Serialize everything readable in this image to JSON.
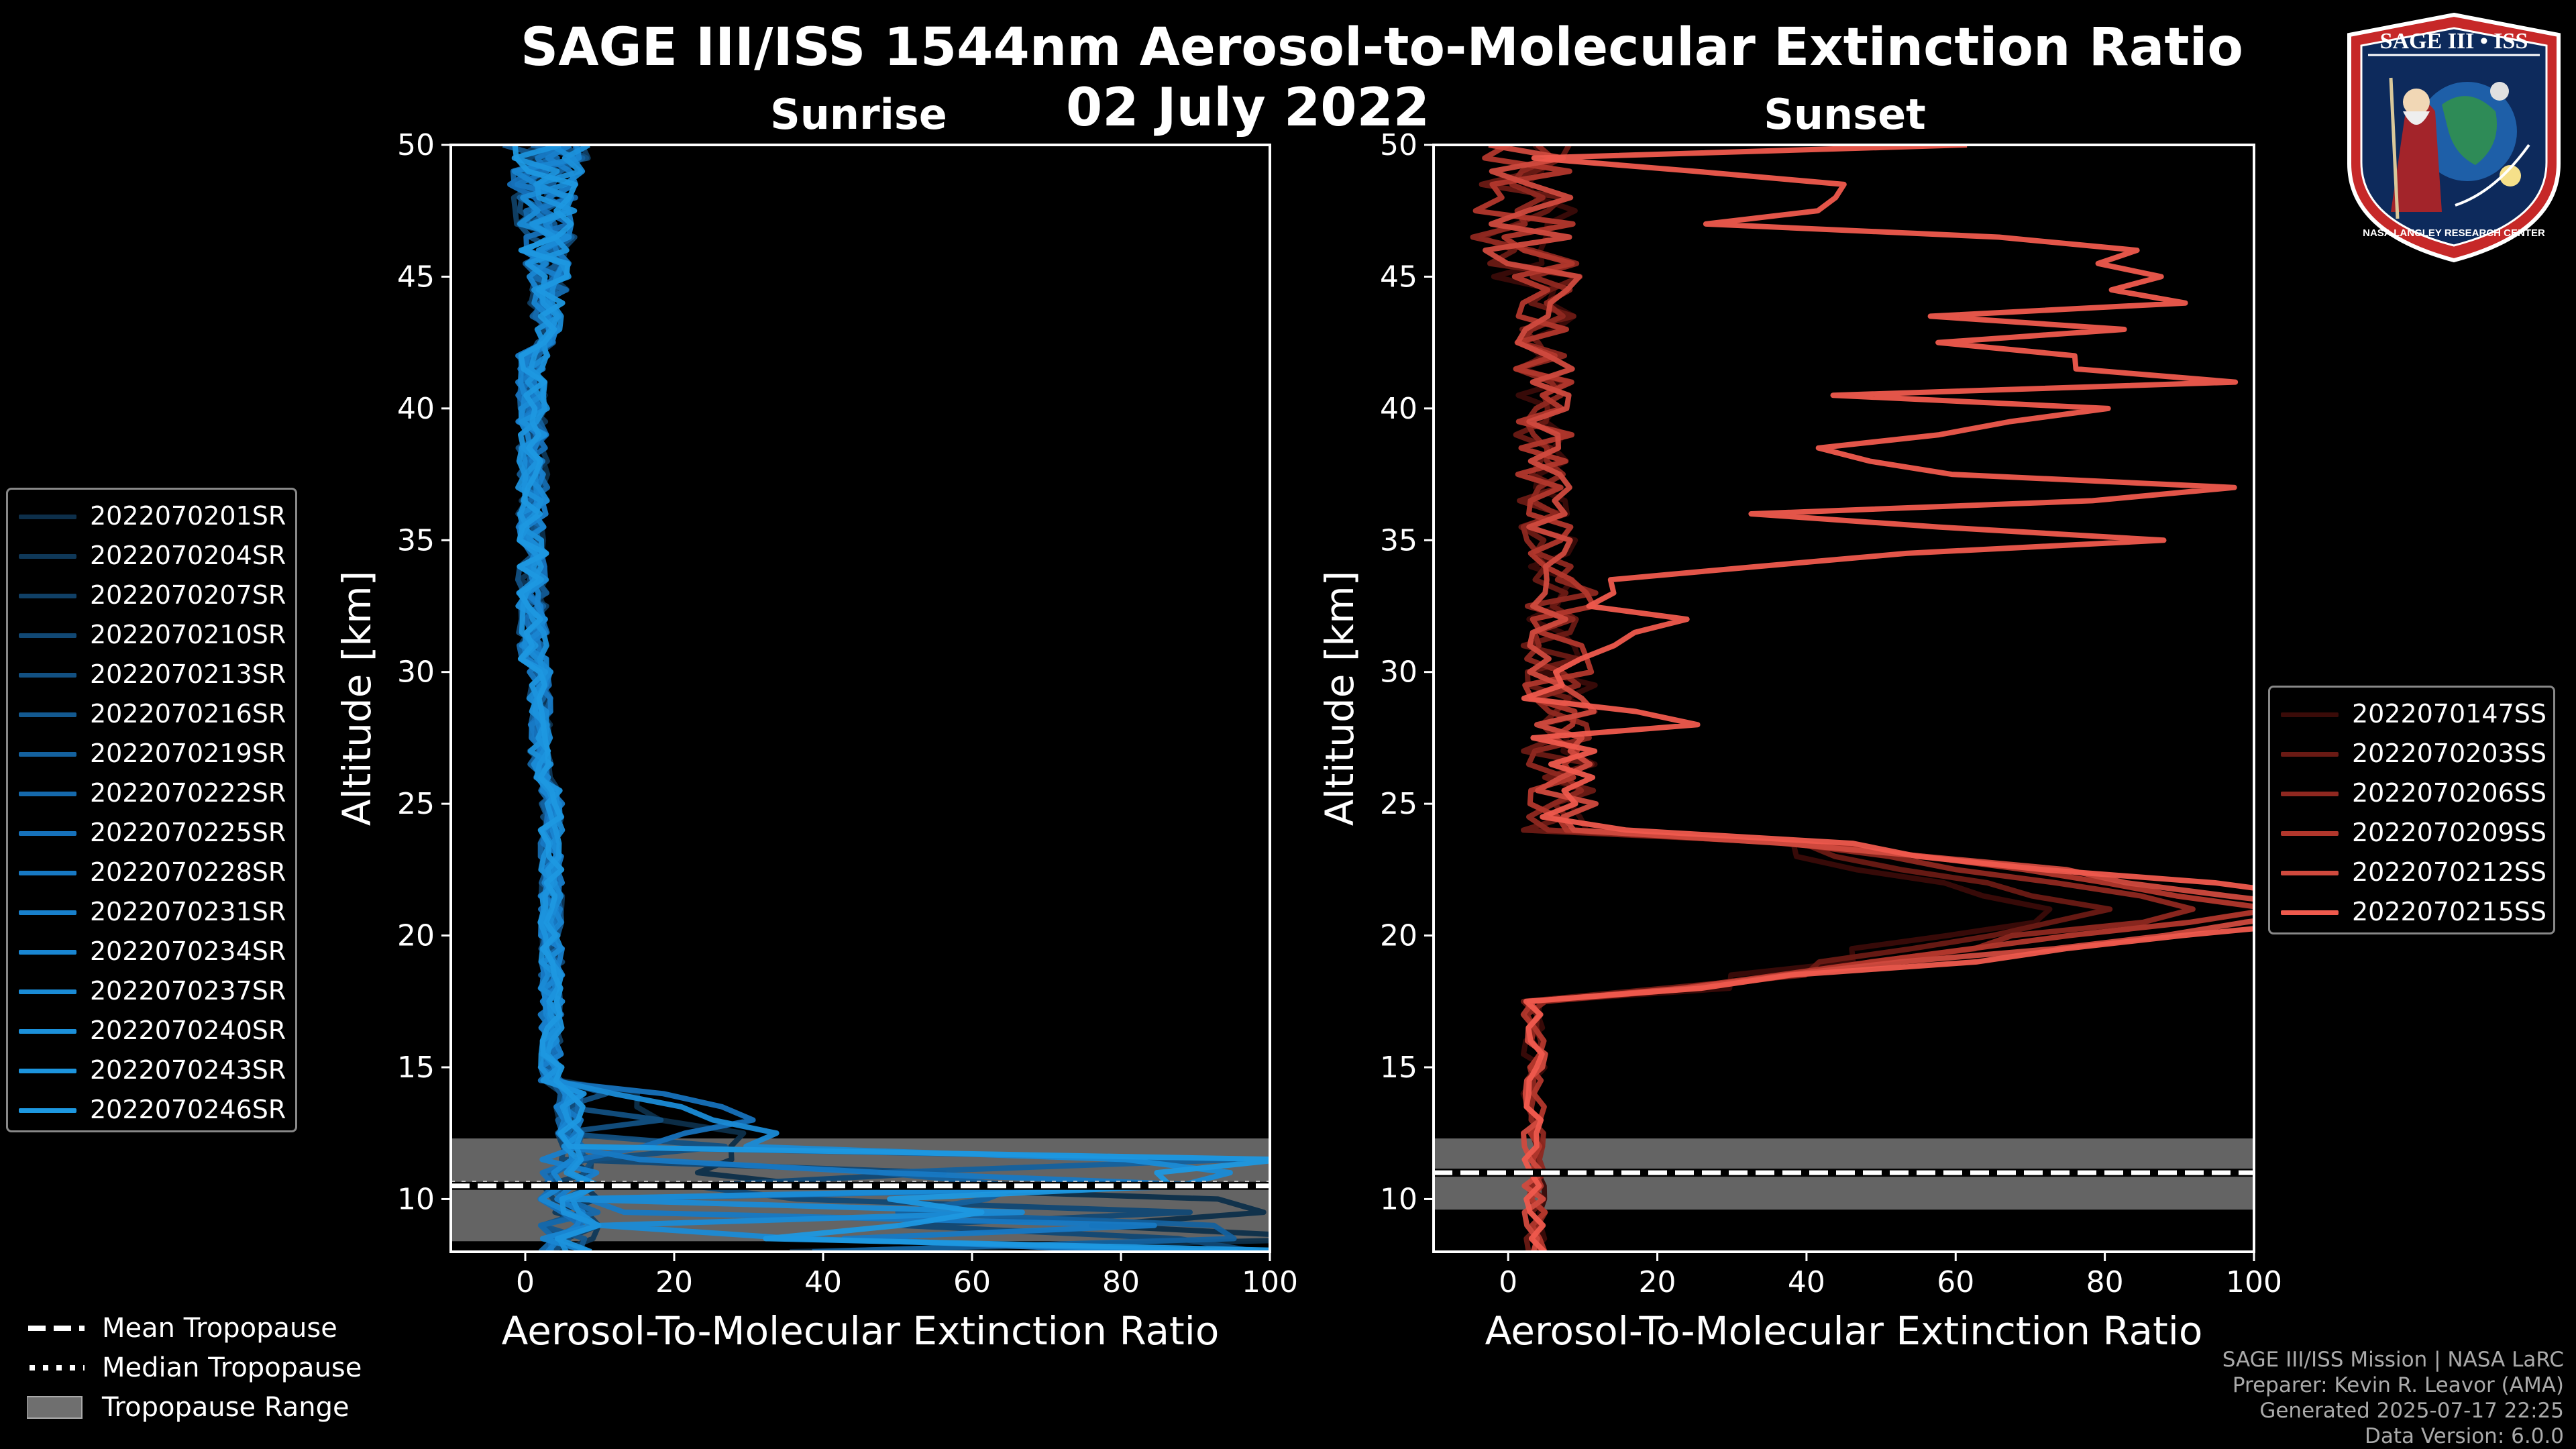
{
  "title_line1": "SAGE III/ISS 1544nm Aerosol-to-Molecular Extinction Ratio",
  "title_line2": "02 July 2022",
  "logo": {
    "text": "SAGE III • ISS",
    "ring_text": "NASA LANGLEY RESEARCH CENTER"
  },
  "bottom_legend": {
    "mean": "Mean Tropopause",
    "median": "Median Tropopause",
    "range": "Tropopause Range"
  },
  "credits": [
    "SAGE III/ISS Mission | NASA LaRC",
    "Preparer: Kevin R. Leavor (AMA)",
    "Generated 2025-07-17 22:25",
    "Data Version: 6.0.0"
  ],
  "colors": {
    "sunrise": "#1a8fd6",
    "sunset": "#e8574a",
    "tropopause_fill": "#6f6f6f"
  },
  "chart_data": [
    {
      "type": "line",
      "title": "Sunrise",
      "xlabel": "Aerosol-To-Molecular Extinction Ratio",
      "ylabel": "Altitude [km]",
      "xlim": [
        -10,
        100
      ],
      "ylim": [
        8,
        50
      ],
      "xticks": [
        0,
        20,
        40,
        60,
        80,
        100
      ],
      "yticks": [
        10,
        15,
        20,
        25,
        30,
        35,
        40,
        45,
        50
      ],
      "tropopause": {
        "mean": 10.5,
        "median": 10.6,
        "range": [
          8.4,
          12.3
        ]
      },
      "series": [
        {
          "name": "2022070201SR",
          "color": "#0d2f4a"
        },
        {
          "name": "2022070204SR",
          "color": "#0f3858"
        },
        {
          "name": "2022070207SR",
          "color": "#104066"
        },
        {
          "name": "2022070210SR",
          "color": "#114874"
        },
        {
          "name": "2022070213SR",
          "color": "#125082"
        },
        {
          "name": "2022070216SR",
          "color": "#135990"
        },
        {
          "name": "2022070219SR",
          "color": "#14619e"
        },
        {
          "name": "2022070222SR",
          "color": "#1569ac"
        },
        {
          "name": "2022070225SR",
          "color": "#1671ba"
        },
        {
          "name": "2022070228SR",
          "color": "#1779c4"
        },
        {
          "name": "2022070231SR",
          "color": "#1880cc"
        },
        {
          "name": "2022070234SR",
          "color": "#1986d2"
        },
        {
          "name": "2022070237SR",
          "color": "#1a8bd6"
        },
        {
          "name": "2022070240SR",
          "color": "#1b90da"
        },
        {
          "name": "2022070243SR",
          "color": "#1c94dd"
        },
        {
          "name": "2022070246SR",
          "color": "#1d98e0"
        }
      ]
    },
    {
      "type": "line",
      "title": "Sunset",
      "xlabel": "Aerosol-To-Molecular Extinction Ratio",
      "ylabel": "Altitude [km]",
      "xlim": [
        -10,
        100
      ],
      "ylim": [
        8,
        50
      ],
      "xticks": [
        0,
        20,
        40,
        60,
        80,
        100
      ],
      "yticks": [
        10,
        15,
        20,
        25,
        30,
        35,
        40,
        45,
        50
      ],
      "tropopause": {
        "mean": 11.0,
        "median": 11.0,
        "range": [
          9.6,
          12.3
        ]
      },
      "series": [
        {
          "name": "2022070147SS",
          "color": "#3a0b08"
        },
        {
          "name": "2022070203SS",
          "color": "#6a1a14"
        },
        {
          "name": "2022070206SS",
          "color": "#8f2820"
        },
        {
          "name": "2022070209SS",
          "color": "#b2372c"
        },
        {
          "name": "2022070212SS",
          "color": "#d04a3e"
        },
        {
          "name": "2022070215SS",
          "color": "#ef5a4d"
        }
      ]
    }
  ]
}
